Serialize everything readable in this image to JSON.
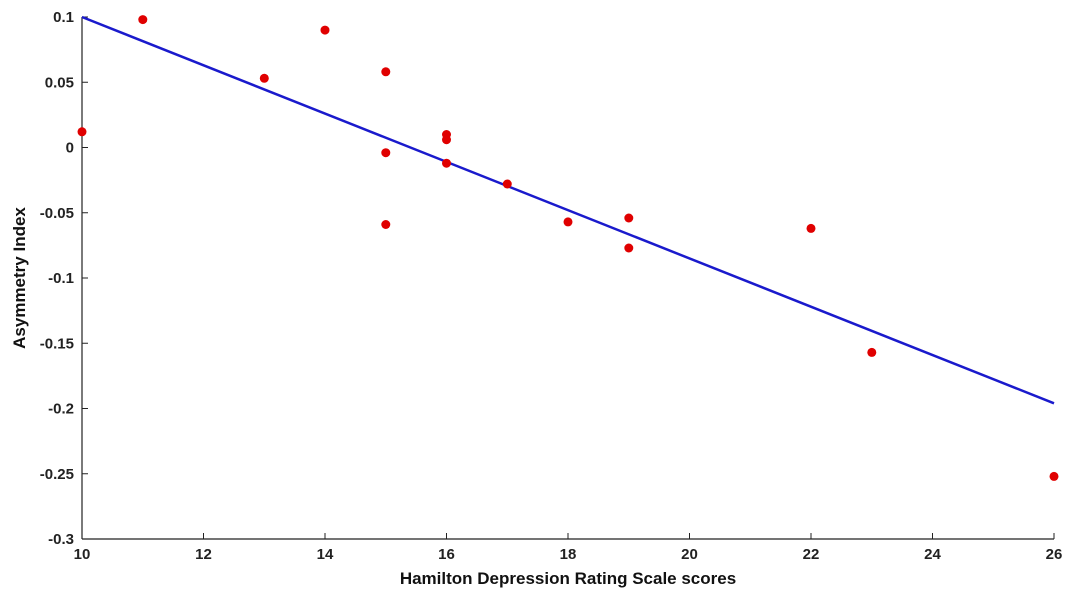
{
  "chart_data": {
    "type": "scatter",
    "xlabel": "Hamilton Depression Rating Scale scores",
    "ylabel": "Asymmetry Index",
    "xlim": [
      10,
      26
    ],
    "ylim": [
      -0.3,
      0.1
    ],
    "x_ticks": [
      10,
      12,
      14,
      16,
      18,
      20,
      22,
      24,
      26
    ],
    "y_ticks": [
      0.1,
      0.05,
      0,
      -0.05,
      -0.1,
      -0.15,
      -0.2,
      -0.25,
      -0.3
    ],
    "x_tick_labels": [
      "10",
      "12",
      "14",
      "16",
      "18",
      "20",
      "22",
      "24",
      "26"
    ],
    "y_tick_labels": [
      "0.1",
      "0.05",
      "0",
      "-0.05",
      "-0.1",
      "-0.15",
      "-0.2",
      "-0.25",
      "-0.3"
    ],
    "grid": false,
    "series": [
      {
        "type": "scatter",
        "color": "#e00000",
        "points": [
          {
            "x": 10,
            "y": 0.012
          },
          {
            "x": 11,
            "y": 0.098
          },
          {
            "x": 13,
            "y": 0.053
          },
          {
            "x": 14,
            "y": 0.09
          },
          {
            "x": 15,
            "y": 0.058
          },
          {
            "x": 15,
            "y": -0.004
          },
          {
            "x": 15,
            "y": -0.059
          },
          {
            "x": 16,
            "y": 0.01
          },
          {
            "x": 16,
            "y": 0.006
          },
          {
            "x": 16,
            "y": -0.012
          },
          {
            "x": 17,
            "y": -0.028
          },
          {
            "x": 18,
            "y": -0.057
          },
          {
            "x": 19,
            "y": -0.054
          },
          {
            "x": 19,
            "y": -0.077
          },
          {
            "x": 22,
            "y": -0.062
          },
          {
            "x": 23,
            "y": -0.157
          },
          {
            "x": 26,
            "y": -0.252
          }
        ]
      },
      {
        "type": "line",
        "color": "#1a1acc",
        "points": [
          {
            "x": 10,
            "y": 0.1
          },
          {
            "x": 26,
            "y": -0.196
          }
        ]
      }
    ]
  }
}
